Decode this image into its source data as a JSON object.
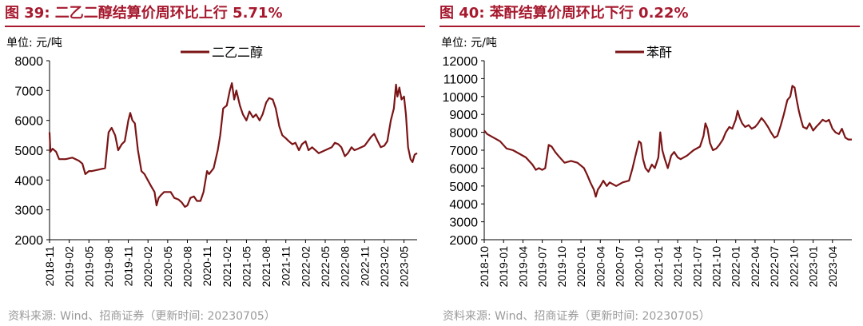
{
  "figures": [
    {
      "title": "图 39:  二乙二醇结算价周环比上行 5.71%",
      "source": "资料来源:  Wind、招商证券（更新时间: 20230705）"
    },
    {
      "title": "图 40:  苯酐结算价周环比下行 0.22%",
      "source": "资料来源:  Wind、招商证券（更新时间: 20230705）"
    }
  ],
  "colors": {
    "title": "#a6192e",
    "series": "#7b1416",
    "axis": "#000000",
    "source": "#9a9a9a"
  },
  "chart_data": [
    {
      "type": "line",
      "unit_label": "单位:  元/吨",
      "legend_position": "top-center",
      "grid": false,
      "ylim": [
        2000,
        8000
      ],
      "yticks": [
        "8000",
        "7000",
        "6000",
        "5000",
        "4000",
        "3000",
        "2000"
      ],
      "xrange": [
        "2018-11",
        "2023-07"
      ],
      "xticks": [
        "2018-11",
        "2019-02",
        "2019-05",
        "2019-08",
        "2019-11",
        "2020-02",
        "2020-05",
        "2020-08",
        "2020-11",
        "2021-02",
        "2021-05",
        "2021-08",
        "2021-11",
        "2022-02",
        "2022-05",
        "2022-08",
        "2022-11",
        "2023-02",
        "2023-05"
      ],
      "series": [
        {
          "name": "二乙二醇",
          "points": [
            [
              "2018-11-01",
              5600
            ],
            [
              "2018-11-05",
              4950
            ],
            [
              "2018-11-15",
              5050
            ],
            [
              "2018-12-01",
              4950
            ],
            [
              "2018-12-15",
              4700
            ],
            [
              "2019-01-15",
              4700
            ],
            [
              "2019-02-15",
              4750
            ],
            [
              "2019-03-15",
              4650
            ],
            [
              "2019-04-01",
              4550
            ],
            [
              "2019-04-15",
              4200
            ],
            [
              "2019-05-01",
              4300
            ],
            [
              "2019-05-15",
              4300
            ],
            [
              "2019-06-15",
              4350
            ],
            [
              "2019-07-15",
              4400
            ],
            [
              "2019-08-01",
              5600
            ],
            [
              "2019-08-15",
              5750
            ],
            [
              "2019-09-01",
              5500
            ],
            [
              "2019-09-15",
              5000
            ],
            [
              "2019-10-01",
              5200
            ],
            [
              "2019-10-15",
              5300
            ],
            [
              "2019-11-01",
              6000
            ],
            [
              "2019-11-10",
              6250
            ],
            [
              "2019-11-20",
              6000
            ],
            [
              "2019-12-01",
              5900
            ],
            [
              "2019-12-15",
              5000
            ],
            [
              "2020-01-01",
              4300
            ],
            [
              "2020-01-15",
              4200
            ],
            [
              "2020-02-15",
              3800
            ],
            [
              "2020-03-01",
              3600
            ],
            [
              "2020-03-10",
              3150
            ],
            [
              "2020-03-20",
              3400
            ],
            [
              "2020-04-01",
              3500
            ],
            [
              "2020-04-15",
              3600
            ],
            [
              "2020-05-15",
              3600
            ],
            [
              "2020-06-01",
              3400
            ],
            [
              "2020-06-20",
              3350
            ],
            [
              "2020-07-05",
              3250
            ],
            [
              "2020-07-20",
              3100
            ],
            [
              "2020-08-01",
              3150
            ],
            [
              "2020-08-15",
              3400
            ],
            [
              "2020-09-01",
              3450
            ],
            [
              "2020-09-15",
              3300
            ],
            [
              "2020-10-01",
              3300
            ],
            [
              "2020-10-15",
              3600
            ],
            [
              "2020-11-01",
              4300
            ],
            [
              "2020-11-10",
              4200
            ],
            [
              "2020-12-01",
              4400
            ],
            [
              "2020-12-20",
              5000
            ],
            [
              "2021-01-01",
              5500
            ],
            [
              "2021-01-15",
              6400
            ],
            [
              "2021-02-01",
              6500
            ],
            [
              "2021-02-15",
              7000
            ],
            [
              "2021-02-25",
              7250
            ],
            [
              "2021-03-05",
              6700
            ],
            [
              "2021-03-15",
              7000
            ],
            [
              "2021-04-01",
              6500
            ],
            [
              "2021-04-15",
              6200
            ],
            [
              "2021-05-01",
              6000
            ],
            [
              "2021-05-15",
              6300
            ],
            [
              "2021-06-01",
              6100
            ],
            [
              "2021-06-15",
              6200
            ],
            [
              "2021-07-01",
              6000
            ],
            [
              "2021-07-15",
              6200
            ],
            [
              "2021-08-01",
              6600
            ],
            [
              "2021-08-15",
              6750
            ],
            [
              "2021-09-01",
              6700
            ],
            [
              "2021-09-15",
              6400
            ],
            [
              "2021-10-01",
              5800
            ],
            [
              "2021-10-15",
              5500
            ],
            [
              "2021-11-01",
              5400
            ],
            [
              "2021-11-15",
              5300
            ],
            [
              "2021-12-01",
              5200
            ],
            [
              "2021-12-15",
              5250
            ],
            [
              "2022-01-01",
              5000
            ],
            [
              "2022-01-15",
              5200
            ],
            [
              "2022-02-01",
              5300
            ],
            [
              "2022-02-15",
              5000
            ],
            [
              "2022-03-01",
              5100
            ],
            [
              "2022-04-01",
              4900
            ],
            [
              "2022-05-01",
              5000
            ],
            [
              "2022-06-01",
              5100
            ],
            [
              "2022-06-15",
              5250
            ],
            [
              "2022-07-01",
              5200
            ],
            [
              "2022-07-15",
              5100
            ],
            [
              "2022-08-01",
              4800
            ],
            [
              "2022-08-15",
              4900
            ],
            [
              "2022-09-01",
              5100
            ],
            [
              "2022-09-15",
              5000
            ],
            [
              "2022-10-01",
              5050
            ],
            [
              "2022-11-01",
              5150
            ],
            [
              "2022-12-01",
              5450
            ],
            [
              "2022-12-15",
              5550
            ],
            [
              "2023-01-01",
              5300
            ],
            [
              "2023-01-15",
              5100
            ],
            [
              "2023-02-01",
              5150
            ],
            [
              "2023-02-15",
              5300
            ],
            [
              "2023-03-01",
              6000
            ],
            [
              "2023-03-15",
              6400
            ],
            [
              "2023-03-25",
              7200
            ],
            [
              "2023-04-01",
              6800
            ],
            [
              "2023-04-10",
              7100
            ],
            [
              "2023-04-20",
              6700
            ],
            [
              "2023-05-01",
              6800
            ],
            [
              "2023-05-10",
              6200
            ],
            [
              "2023-05-20",
              5100
            ],
            [
              "2023-06-01",
              4700
            ],
            [
              "2023-06-10",
              4600
            ],
            [
              "2023-06-20",
              4850
            ],
            [
              "2023-07-01",
              4900
            ]
          ]
        }
      ]
    },
    {
      "type": "line",
      "unit_label": "单位:  元/吨",
      "legend_position": "top-center",
      "grid": false,
      "ylim": [
        2000,
        12000
      ],
      "yticks": [
        "12000",
        "11000",
        "10000",
        "9000",
        "8000",
        "7000",
        "6000",
        "5000",
        "4000",
        "3000",
        "2000"
      ],
      "xrange": [
        "2018-10",
        "2023-07"
      ],
      "xticks": [
        "2018-10",
        "2019-01",
        "2019-04",
        "2019-07",
        "2019-10",
        "2020-01",
        "2020-04",
        "2020-07",
        "2020-10",
        "2021-01",
        "2021-04",
        "2021-07",
        "2021-10",
        "2022-01",
        "2022-04",
        "2022-07",
        "2022-10",
        "2023-01",
        "2023-04"
      ],
      "series": [
        {
          "name": "苯酐",
          "points": [
            [
              "2018-10-01",
              8100
            ],
            [
              "2018-10-15",
              7900
            ],
            [
              "2018-11-15",
              7700
            ],
            [
              "2018-12-15",
              7500
            ],
            [
              "2019-01-15",
              7100
            ],
            [
              "2019-02-15",
              7000
            ],
            [
              "2019-03-15",
              6800
            ],
            [
              "2019-04-15",
              6600
            ],
            [
              "2019-05-15",
              6200
            ],
            [
              "2019-06-01",
              5900
            ],
            [
              "2019-06-15",
              6000
            ],
            [
              "2019-07-01",
              5900
            ],
            [
              "2019-07-15",
              6000
            ],
            [
              "2019-08-01",
              7300
            ],
            [
              "2019-08-15",
              7200
            ],
            [
              "2019-09-01",
              6900
            ],
            [
              "2019-09-15",
              6700
            ],
            [
              "2019-10-15",
              6300
            ],
            [
              "2019-11-15",
              6400
            ],
            [
              "2019-12-15",
              6300
            ],
            [
              "2020-01-15",
              6000
            ],
            [
              "2020-02-01",
              5600
            ],
            [
              "2020-02-15",
              5200
            ],
            [
              "2020-03-01",
              4800
            ],
            [
              "2020-03-10",
              4400
            ],
            [
              "2020-03-20",
              4800
            ],
            [
              "2020-04-01",
              5000
            ],
            [
              "2020-04-15",
              5300
            ],
            [
              "2020-05-01",
              5000
            ],
            [
              "2020-05-15",
              5200
            ],
            [
              "2020-06-15",
              5000
            ],
            [
              "2020-07-15",
              5200
            ],
            [
              "2020-08-15",
              5300
            ],
            [
              "2020-09-01",
              6000
            ],
            [
              "2020-09-15",
              6700
            ],
            [
              "2020-10-01",
              7500
            ],
            [
              "2020-10-10",
              7400
            ],
            [
              "2020-10-20",
              6500
            ],
            [
              "2020-11-01",
              6000
            ],
            [
              "2020-11-15",
              5800
            ],
            [
              "2020-12-01",
              6200
            ],
            [
              "2020-12-15",
              6000
            ],
            [
              "2021-01-01",
              6600
            ],
            [
              "2021-01-10",
              8000
            ],
            [
              "2021-01-20",
              7000
            ],
            [
              "2021-02-01",
              6500
            ],
            [
              "2021-02-15",
              6000
            ],
            [
              "2021-03-01",
              6700
            ],
            [
              "2021-03-15",
              6900
            ],
            [
              "2021-04-01",
              6600
            ],
            [
              "2021-04-15",
              6500
            ],
            [
              "2021-05-15",
              6700
            ],
            [
              "2021-06-15",
              7000
            ],
            [
              "2021-07-15",
              7200
            ],
            [
              "2021-08-01",
              7800
            ],
            [
              "2021-08-10",
              8500
            ],
            [
              "2021-08-20",
              8200
            ],
            [
              "2021-09-01",
              7400
            ],
            [
              "2021-09-15",
              7000
            ],
            [
              "2021-10-01",
              7100
            ],
            [
              "2021-10-15",
              7300
            ],
            [
              "2021-11-01",
              7600
            ],
            [
              "2021-11-15",
              8000
            ],
            [
              "2021-12-01",
              8300
            ],
            [
              "2021-12-15",
              8200
            ],
            [
              "2022-01-01",
              8700
            ],
            [
              "2022-01-10",
              9200
            ],
            [
              "2022-01-20",
              8800
            ],
            [
              "2022-02-01",
              8500
            ],
            [
              "2022-02-15",
              8300
            ],
            [
              "2022-03-01",
              8400
            ],
            [
              "2022-03-15",
              8200
            ],
            [
              "2022-04-01",
              8300
            ],
            [
              "2022-04-15",
              8500
            ],
            [
              "2022-05-01",
              8800
            ],
            [
              "2022-05-15",
              8600
            ],
            [
              "2022-06-01",
              8300
            ],
            [
              "2022-06-15",
              8000
            ],
            [
              "2022-07-01",
              7700
            ],
            [
              "2022-07-15",
              7800
            ],
            [
              "2022-08-01",
              8400
            ],
            [
              "2022-08-15",
              9000
            ],
            [
              "2022-09-01",
              9800
            ],
            [
              "2022-09-15",
              10000
            ],
            [
              "2022-09-25",
              10600
            ],
            [
              "2022-10-05",
              10500
            ],
            [
              "2022-10-15",
              9800
            ],
            [
              "2022-10-25",
              9200
            ],
            [
              "2022-11-05",
              8700
            ],
            [
              "2022-11-15",
              8300
            ],
            [
              "2022-12-01",
              8200
            ],
            [
              "2022-12-15",
              8500
            ],
            [
              "2023-01-01",
              8100
            ],
            [
              "2023-01-15",
              8300
            ],
            [
              "2023-02-01",
              8500
            ],
            [
              "2023-02-15",
              8700
            ],
            [
              "2023-03-01",
              8600
            ],
            [
              "2023-03-15",
              8700
            ],
            [
              "2023-04-01",
              8200
            ],
            [
              "2023-04-15",
              8000
            ],
            [
              "2023-05-01",
              7900
            ],
            [
              "2023-05-15",
              8200
            ],
            [
              "2023-06-01",
              7700
            ],
            [
              "2023-06-15",
              7600
            ],
            [
              "2023-07-01",
              7600
            ]
          ]
        }
      ]
    }
  ]
}
